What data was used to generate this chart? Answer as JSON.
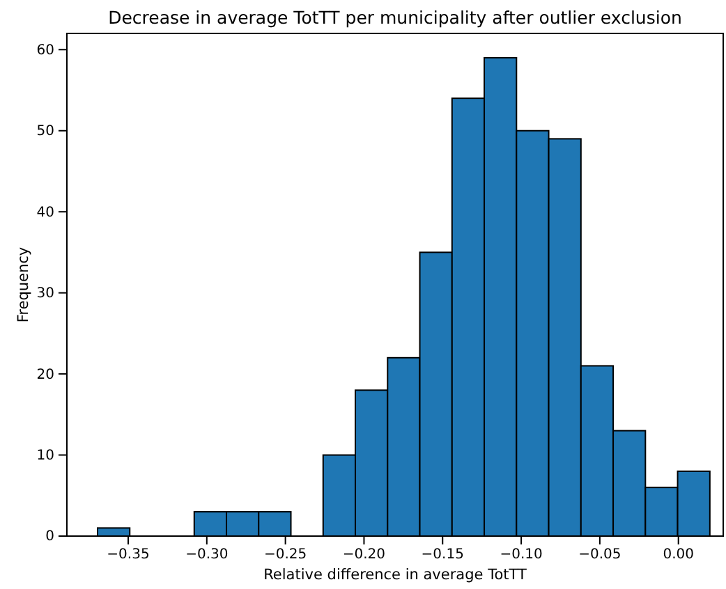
{
  "chart_data": {
    "type": "histogram",
    "title": "Decrease in average TotTT per municipality after outlier exclusion",
    "xlabel": "Relative difference in average TotTT",
    "ylabel": "Frequency",
    "bins": [
      -0.3695,
      -0.349,
      -0.3285,
      -0.308,
      -0.2875,
      -0.267,
      -0.2465,
      -0.226,
      -0.2055,
      -0.185,
      -0.1645,
      -0.144,
      -0.1235,
      -0.103,
      -0.0825,
      -0.062,
      -0.0415,
      -0.021,
      -0.0005,
      0.02
    ],
    "values": [
      1,
      0,
      0,
      3,
      3,
      3,
      0,
      10,
      18,
      22,
      35,
      54,
      59,
      50,
      49,
      21,
      13,
      6,
      8
    ],
    "color": "#1f77b4",
    "xlim": [
      -0.389,
      0.0285
    ],
    "ylim": [
      0,
      62
    ],
    "xticks": [
      {
        "value": -0.35,
        "label": "−0.35"
      },
      {
        "value": -0.3,
        "label": "−0.30"
      },
      {
        "value": -0.25,
        "label": "−0.25"
      },
      {
        "value": -0.2,
        "label": "−0.20"
      },
      {
        "value": -0.15,
        "label": "−0.15"
      },
      {
        "value": -0.1,
        "label": "−0.10"
      },
      {
        "value": -0.05,
        "label": "−0.05"
      },
      {
        "value": 0,
        "label": "0.00"
      }
    ],
    "yticks": [
      0,
      10,
      20,
      30,
      40,
      50,
      60
    ]
  }
}
